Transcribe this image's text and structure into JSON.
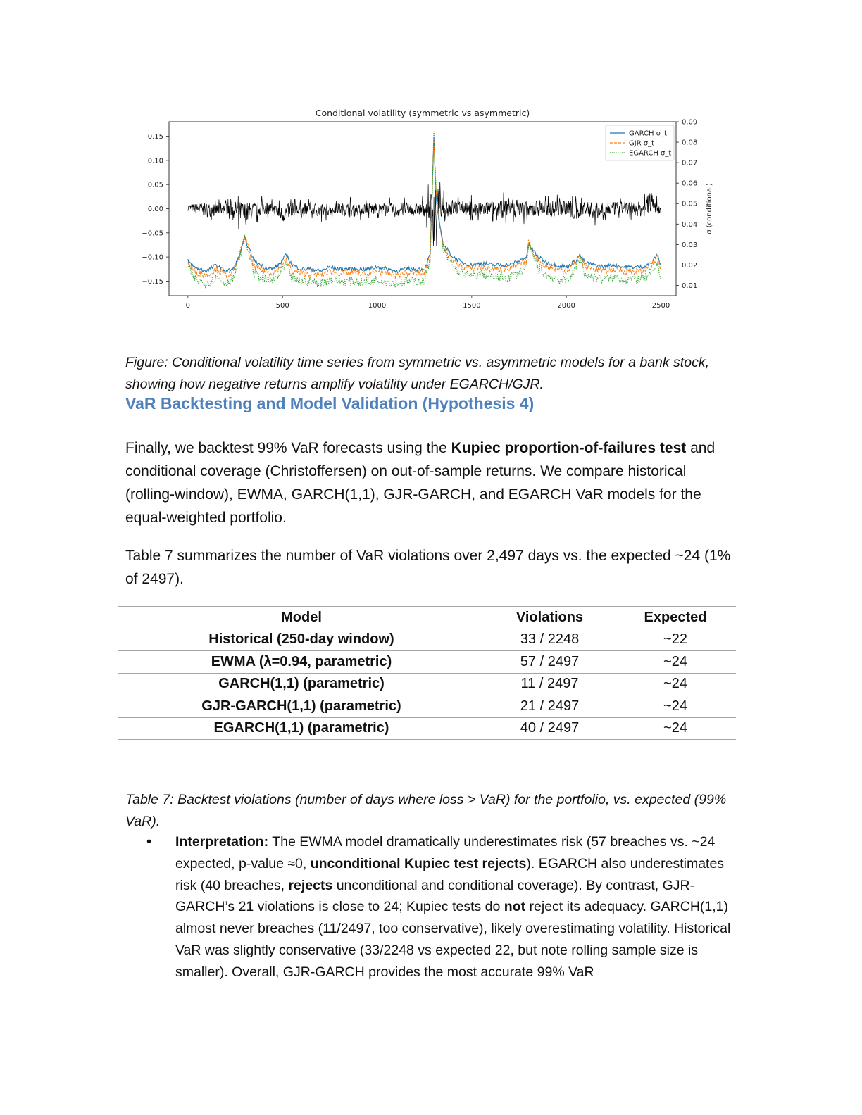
{
  "chart_data": {
    "type": "line",
    "title": "Conditional volatility (symmetric vs asymmetric)",
    "xlabel": "",
    "ylabel": "",
    "y2label": "σ (conditional)",
    "xlim": [
      -100,
      2580
    ],
    "ylim": [
      -0.18,
      0.18
    ],
    "y2lim": [
      0.005,
      0.09
    ],
    "x_ticks": [
      0,
      500,
      1000,
      1500,
      2000,
      2500
    ],
    "y_ticks": [
      -0.15,
      -0.1,
      -0.05,
      0.0,
      0.05,
      0.1,
      0.15
    ],
    "y_tick_labels": [
      "−0.15",
      "−0.10",
      "−0.05",
      "0.00",
      "0.05",
      "0.10",
      "0.15"
    ],
    "y2_ticks": [
      0.01,
      0.02,
      0.03,
      0.04,
      0.05,
      0.06,
      0.07,
      0.08,
      0.09
    ],
    "y2_tick_labels": [
      "0.01",
      "0.02",
      "0.03",
      "0.04",
      "0.05",
      "0.06",
      "0.07",
      "0.08",
      "0.09"
    ],
    "legend_position": "top-right",
    "colors": {
      "returns": "#000000",
      "garch": "#1f77b4",
      "gjr": "#ff7f0e",
      "egarch": "#2ca02c"
    },
    "returns": {
      "axis": "left",
      "x": [
        0,
        50,
        100,
        150,
        200,
        250,
        300,
        350,
        400,
        450,
        500,
        550,
        600,
        650,
        700,
        750,
        800,
        850,
        900,
        950,
        1000,
        1050,
        1100,
        1150,
        1200,
        1250,
        1290,
        1300,
        1310,
        1320,
        1330,
        1340,
        1350,
        1400,
        1450,
        1500,
        1550,
        1600,
        1650,
        1700,
        1750,
        1800,
        1850,
        1900,
        1950,
        2000,
        2050,
        2100,
        2150,
        2200,
        2250,
        2300,
        2350,
        2400,
        2450,
        2500
      ],
      "lower": [
        -0.01,
        -0.02,
        -0.03,
        -0.025,
        -0.02,
        -0.035,
        -0.055,
        -0.03,
        -0.025,
        -0.02,
        -0.045,
        -0.025,
        -0.03,
        -0.02,
        -0.03,
        -0.025,
        -0.02,
        -0.03,
        -0.025,
        -0.02,
        -0.025,
        -0.02,
        -0.03,
        -0.025,
        -0.025,
        -0.03,
        -0.07,
        -0.165,
        -0.09,
        -0.06,
        -0.05,
        -0.04,
        -0.035,
        -0.03,
        -0.025,
        -0.03,
        -0.03,
        -0.025,
        -0.035,
        -0.03,
        -0.035,
        -0.04,
        -0.03,
        -0.03,
        -0.03,
        -0.025,
        -0.045,
        -0.025,
        -0.035,
        -0.03,
        -0.025,
        -0.02,
        -0.025,
        -0.03,
        -0.025,
        -0.02
      ],
      "upper": [
        0.015,
        0.02,
        0.025,
        0.02,
        0.025,
        0.03,
        0.035,
        0.025,
        0.03,
        0.02,
        0.02,
        0.025,
        0.02,
        0.025,
        0.02,
        0.025,
        0.02,
        0.025,
        0.02,
        0.025,
        0.02,
        0.025,
        0.02,
        0.025,
        0.02,
        0.03,
        0.07,
        0.165,
        0.1,
        0.08,
        0.06,
        0.05,
        0.04,
        0.035,
        0.03,
        0.03,
        0.025,
        0.03,
        0.03,
        0.04,
        0.035,
        0.03,
        0.035,
        0.03,
        0.03,
        0.035,
        0.03,
        0.03,
        0.025,
        0.03,
        0.025,
        0.025,
        0.03,
        0.025,
        0.055,
        0.015
      ]
    },
    "series": [
      {
        "name": "GARCH σ_t",
        "style": "solid",
        "x": [
          0,
          30,
          60,
          100,
          150,
          200,
          240,
          270,
          300,
          350,
          400,
          450,
          490,
          520,
          550,
          600,
          650,
          700,
          750,
          800,
          850,
          900,
          950,
          1000,
          1050,
          1100,
          1150,
          1200,
          1250,
          1280,
          1300,
          1310,
          1320,
          1330,
          1340,
          1350,
          1400,
          1450,
          1500,
          1550,
          1600,
          1650,
          1700,
          1750,
          1790,
          1800,
          1850,
          1900,
          1950,
          2000,
          2050,
          2070,
          2100,
          2150,
          2200,
          2250,
          2300,
          2350,
          2400,
          2450,
          2480,
          2500
        ],
        "y": [
          0.022,
          0.019,
          0.018,
          0.017,
          0.02,
          0.017,
          0.018,
          0.024,
          0.033,
          0.022,
          0.019,
          0.018,
          0.021,
          0.025,
          0.02,
          0.018,
          0.018,
          0.017,
          0.019,
          0.018,
          0.018,
          0.018,
          0.018,
          0.019,
          0.018,
          0.017,
          0.018,
          0.018,
          0.018,
          0.025,
          0.082,
          0.055,
          0.045,
          0.04,
          0.035,
          0.03,
          0.024,
          0.021,
          0.02,
          0.021,
          0.02,
          0.02,
          0.02,
          0.022,
          0.024,
          0.03,
          0.024,
          0.021,
          0.02,
          0.019,
          0.022,
          0.025,
          0.021,
          0.02,
          0.019,
          0.02,
          0.019,
          0.019,
          0.019,
          0.021,
          0.025,
          0.02
        ]
      },
      {
        "name": "GJR σ_t",
        "style": "dashed",
        "x": [
          0,
          30,
          60,
          100,
          150,
          200,
          240,
          270,
          300,
          350,
          400,
          450,
          490,
          520,
          550,
          600,
          650,
          700,
          750,
          800,
          850,
          900,
          950,
          1000,
          1050,
          1100,
          1150,
          1200,
          1250,
          1280,
          1300,
          1310,
          1320,
          1330,
          1340,
          1350,
          1400,
          1450,
          1500,
          1550,
          1600,
          1650,
          1700,
          1750,
          1790,
          1800,
          1850,
          1900,
          1950,
          2000,
          2050,
          2070,
          2100,
          2150,
          2200,
          2250,
          2300,
          2350,
          2400,
          2450,
          2480,
          2500
        ],
        "y": [
          0.021,
          0.017,
          0.016,
          0.015,
          0.018,
          0.015,
          0.016,
          0.024,
          0.034,
          0.019,
          0.017,
          0.016,
          0.019,
          0.022,
          0.017,
          0.016,
          0.016,
          0.015,
          0.017,
          0.016,
          0.016,
          0.016,
          0.015,
          0.017,
          0.016,
          0.015,
          0.016,
          0.016,
          0.016,
          0.024,
          0.083,
          0.058,
          0.048,
          0.04,
          0.034,
          0.029,
          0.022,
          0.019,
          0.018,
          0.019,
          0.018,
          0.018,
          0.018,
          0.02,
          0.022,
          0.031,
          0.022,
          0.019,
          0.018,
          0.017,
          0.021,
          0.025,
          0.019,
          0.018,
          0.017,
          0.018,
          0.017,
          0.017,
          0.017,
          0.019,
          0.024,
          0.018
        ]
      },
      {
        "name": "EGARCH σ_t",
        "style": "dotted",
        "x": [
          0,
          30,
          60,
          100,
          150,
          200,
          240,
          270,
          300,
          350,
          400,
          450,
          490,
          520,
          550,
          600,
          650,
          700,
          750,
          800,
          850,
          900,
          950,
          1000,
          1050,
          1100,
          1150,
          1200,
          1250,
          1280,
          1300,
          1310,
          1320,
          1330,
          1340,
          1350,
          1400,
          1450,
          1500,
          1550,
          1600,
          1650,
          1700,
          1750,
          1790,
          1800,
          1850,
          1900,
          1950,
          2000,
          2050,
          2070,
          2100,
          2150,
          2200,
          2250,
          2300,
          2350,
          2400,
          2450,
          2480,
          2500
        ],
        "y": [
          0.019,
          0.014,
          0.012,
          0.011,
          0.014,
          0.011,
          0.013,
          0.023,
          0.033,
          0.016,
          0.013,
          0.012,
          0.016,
          0.02,
          0.013,
          0.012,
          0.012,
          0.011,
          0.013,
          0.012,
          0.012,
          0.012,
          0.011,
          0.013,
          0.012,
          0.011,
          0.012,
          0.012,
          0.012,
          0.022,
          0.084,
          0.06,
          0.05,
          0.04,
          0.033,
          0.027,
          0.019,
          0.016,
          0.014,
          0.016,
          0.014,
          0.014,
          0.014,
          0.016,
          0.019,
          0.03,
          0.018,
          0.015,
          0.013,
          0.012,
          0.018,
          0.024,
          0.015,
          0.014,
          0.013,
          0.014,
          0.013,
          0.013,
          0.013,
          0.015,
          0.021,
          0.014
        ]
      }
    ]
  },
  "figure_caption": "Figure: Conditional volatility time series from symmetric vs. asymmetric models for a bank stock, showing how negative returns amplify volatility under EGARCH/GJR.",
  "section_heading": "VaR Backtesting and Model Validation (Hypothesis 4)",
  "para1": {
    "before": "Finally, we backtest 99% VaR forecasts using the ",
    "bold": "Kupiec proportion-of-failures test",
    "after": " and conditional coverage (Christoffersen) on out-of-sample returns. We compare historical (rolling-window), EWMA, GARCH(1,1), GJR-GARCH, and EGARCH VaR models for the equal-weighted portfolio."
  },
  "para2": "Table 7 summarizes the number of VaR violations over 2,497 days vs. the expected ~24 (1% of 2497).",
  "table": {
    "headers": [
      "Model",
      "Violations",
      "Expected"
    ],
    "rows": [
      [
        "Historical (250-day window)",
        "33 / 2248",
        "~22"
      ],
      [
        "EWMA (λ=0.94, parametric)",
        "57 / 2497",
        "~24"
      ],
      [
        "GARCH(1,1) (parametric)",
        "11 / 2497",
        "~24"
      ],
      [
        "GJR-GARCH(1,1) (parametric)",
        "21 / 2497",
        "~24"
      ],
      [
        "EGARCH(1,1) (parametric)",
        "40 / 2497",
        "~24"
      ]
    ]
  },
  "table_caption": "Table 7: Backtest violations (number of days where loss > VaR) for the portfolio, vs. expected (99% VaR).",
  "bullet": {
    "marker": "•",
    "label": "Interpretation:",
    "t1": " The EWMA model dramatically underestimates risk (57 breaches vs. ~24 expected, p-value ≈0, ",
    "b1": "unconditional Kupiec test rejects",
    "t2": "). EGARCH also underestimates risk (40 breaches, ",
    "b2": "rejects",
    "t3": " unconditional and conditional coverage). By contrast, GJR-GARCH’s 21 violations is close to 24; Kupiec tests do ",
    "b3": "not",
    "t4": " reject its adequacy. GARCH(1,1) almost never breaches (11/2497, too conservative), likely overestimating volatility. Historical VaR was slightly conservative (33/2248 vs expected 22, but note rolling sample size is smaller). Overall, GJR-GARCH provides the most accurate 99% VaR"
  }
}
